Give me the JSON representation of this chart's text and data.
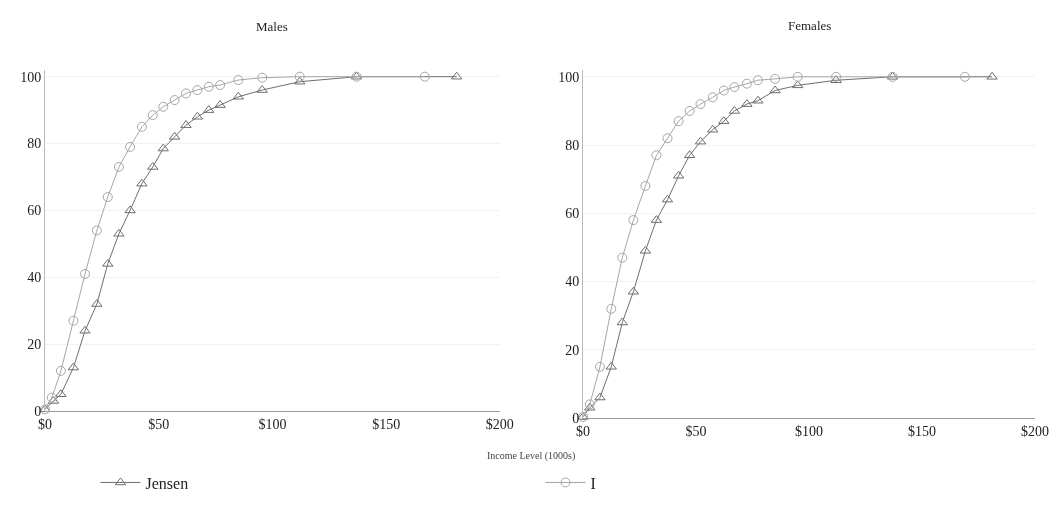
{
  "chart_data": [
    {
      "type": "line",
      "title": "Males",
      "xlabel": "Income Level (1000s)",
      "xlim": [
        0,
        200
      ],
      "xticks": [
        {
          "value": 0,
          "label": "$0"
        },
        {
          "value": 50,
          "label": "$50"
        },
        {
          "value": 100,
          "label": "$100"
        },
        {
          "value": 150,
          "label": "$150"
        },
        {
          "value": 200,
          "label": "$200"
        }
      ],
      "ylim": [
        0,
        102
      ],
      "yticks": [
        0,
        20,
        40,
        60,
        80,
        100
      ],
      "grid": "y",
      "legend": "bottom",
      "line_style": "solid",
      "series": [
        {
          "name": "Jensen",
          "color": "#6e6e6e",
          "marker": "triangle",
          "x": [
            0,
            3.7,
            7,
            12.5,
            17.6,
            22.8,
            27.6,
            32.5,
            37.4,
            42.6,
            47.4,
            52,
            57,
            62,
            67,
            72,
            77,
            85,
            95.5,
            112,
            137,
            181
          ],
          "values": [
            0.5,
            3,
            5,
            13,
            24,
            32,
            44,
            53,
            60,
            68,
            73,
            78.5,
            82,
            85.5,
            88,
            90,
            91.5,
            94,
            96,
            98.5,
            100,
            100
          ]
        },
        {
          "name": "I",
          "color": "#a6a6a6",
          "marker": "circle",
          "x": [
            0,
            3,
            7,
            12.5,
            17.6,
            22.8,
            27.6,
            32.5,
            37.4,
            42.6,
            47.4,
            52,
            57,
            62,
            67,
            72,
            77,
            85,
            95.5,
            112,
            137,
            167
          ],
          "values": [
            0.5,
            4,
            12,
            27,
            41,
            54,
            64,
            73,
            79,
            85,
            88.5,
            91,
            93,
            95,
            96,
            97,
            97.5,
            99,
            99.7,
            100,
            100,
            100
          ]
        }
      ]
    },
    {
      "type": "line",
      "title": "Females",
      "xlim": [
        0,
        200
      ],
      "xticks": [
        {
          "value": 0,
          "label": "$0"
        },
        {
          "value": 50,
          "label": "$50"
        },
        {
          "value": 100,
          "label": "$100"
        },
        {
          "value": 150,
          "label": "$150"
        },
        {
          "value": 200,
          "label": "$200"
        }
      ],
      "ylim": [
        0,
        102
      ],
      "yticks": [
        0,
        20,
        40,
        60,
        80,
        100
      ],
      "grid": "y",
      "legend": false,
      "line_style": "solid",
      "series": [
        {
          "color": "#6e6e6e",
          "marker": "triangle",
          "x": [
            0,
            3,
            7.5,
            12.5,
            17.4,
            22.3,
            27.6,
            32.5,
            37.4,
            42.3,
            47.2,
            52,
            57.4,
            62.3,
            67,
            72.5,
            77.4,
            85,
            95,
            112,
            137,
            181
          ],
          "values": [
            0.3,
            3,
            6,
            15,
            28,
            37,
            49,
            58,
            64,
            71,
            77,
            81,
            84.5,
            87,
            90,
            92,
            93,
            96,
            97.5,
            99,
            100,
            100
          ]
        },
        {
          "color": "#a6a6a6",
          "marker": "circle",
          "x": [
            0,
            3,
            7.5,
            12.5,
            17.4,
            22.3,
            27.6,
            32.5,
            37.4,
            42.3,
            47.2,
            52,
            57.4,
            62.3,
            67,
            72.5,
            77.4,
            85,
            95,
            112,
            137,
            169
          ],
          "values": [
            0.3,
            4,
            15,
            32,
            47,
            58,
            68,
            77,
            82,
            87,
            90,
            92,
            94,
            96,
            97,
            98,
            99,
            99.4,
            100,
            100,
            100,
            100
          ]
        }
      ]
    }
  ]
}
